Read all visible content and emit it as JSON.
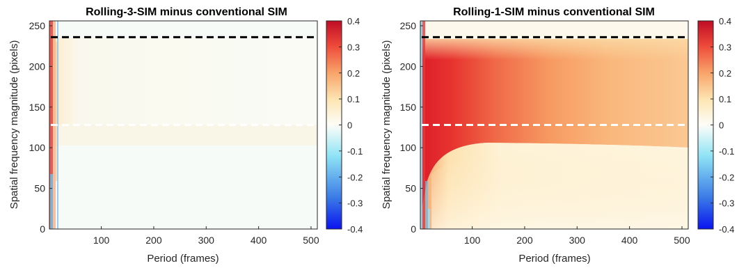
{
  "chart_data": [
    {
      "type": "heatmap",
      "title": "Rolling-3-SIM minus conventional SIM",
      "xlabel": "Period (frames)",
      "ylabel": "Spatial frequency magnitude (pixels)",
      "xlim": [
        1,
        512
      ],
      "ylim": [
        0,
        256
      ],
      "xticks": [
        100,
        200,
        300,
        400,
        500
      ],
      "xtick_labels": [
        "100",
        "200",
        "300",
        "400",
        "500"
      ],
      "yticks": [
        0,
        50,
        100,
        150,
        200,
        250
      ],
      "ytick_labels": [
        "0",
        "50",
        "100",
        "150",
        "200",
        "250"
      ],
      "colorbar": {
        "colormap": "blue-white-red",
        "clim": [
          -0.4,
          0.4
        ],
        "ticks": [
          -0.4,
          -0.3,
          -0.2,
          -0.1,
          0,
          0.1,
          0.2,
          0.3,
          0.4
        ],
        "tick_labels": [
          "-0.4",
          "-0.3",
          "-0.2",
          "-0.1",
          "0",
          "0.1",
          "0.2",
          "0.3",
          "0.4"
        ]
      },
      "reference_lines": [
        {
          "y": 236,
          "color": "#000000",
          "style": "dashed"
        },
        {
          "y": 128,
          "color": "#ffffff",
          "style": "dashed"
        }
      ],
      "grid": false
    },
    {
      "type": "heatmap",
      "title": "Rolling-1-SIM minus conventional SIM",
      "xlabel": "Period (frames)",
      "ylabel": "Spatial frequency magnitude (pixels)",
      "xlim": [
        1,
        512
      ],
      "ylim": [
        0,
        256
      ],
      "xticks": [
        100,
        200,
        300,
        400,
        500
      ],
      "xtick_labels": [
        "100",
        "200",
        "300",
        "400",
        "500"
      ],
      "yticks": [
        0,
        50,
        100,
        150,
        200,
        250
      ],
      "ytick_labels": [
        "0",
        "50",
        "100",
        "150",
        "200",
        "250"
      ],
      "colorbar": {
        "colormap": "blue-white-red",
        "clim": [
          -0.4,
          0.4
        ],
        "ticks": [
          -0.4,
          -0.3,
          -0.2,
          -0.1,
          0,
          0.1,
          0.2,
          0.3,
          0.4
        ],
        "tick_labels": [
          "-0.4",
          "-0.3",
          "-0.2",
          "-0.1",
          "0",
          "0.1",
          "0.2",
          "0.3",
          "0.4"
        ]
      },
      "reference_lines": [
        {
          "y": 236,
          "color": "#000000",
          "style": "dashed"
        },
        {
          "y": 128,
          "color": "#ffffff",
          "style": "dashed"
        }
      ],
      "grid": false
    }
  ]
}
